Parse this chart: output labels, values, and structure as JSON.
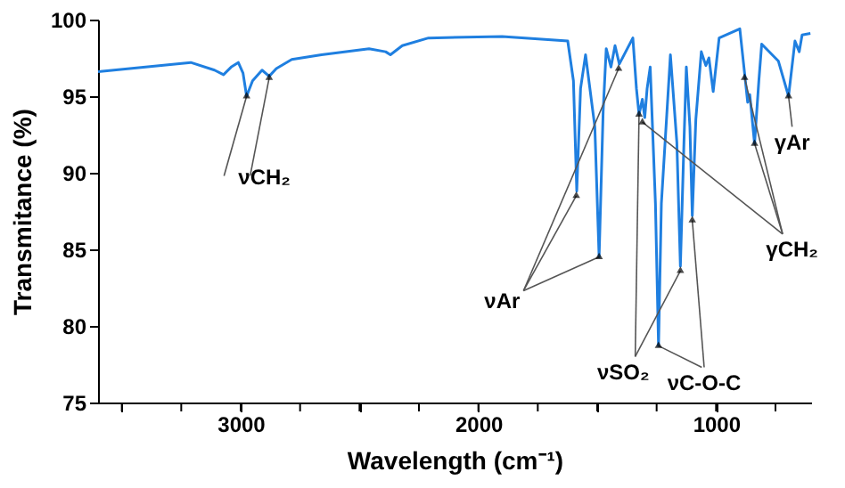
{
  "chart_data": {
    "type": "line",
    "xlabel": "Wavelength (cm⁻¹)",
    "ylabel": "Transmitance (%)",
    "x": [
      3600,
      3210,
      3110,
      3072,
      3040,
      3010,
      2990,
      2975,
      2950,
      2910,
      2880,
      2850,
      2785,
      2660,
      2460,
      2390,
      2370,
      2320,
      2210,
      1900,
      1624,
      1600,
      1586,
      1570,
      1549,
      1510,
      1492,
      1475,
      1462,
      1442,
      1425,
      1407,
      1350,
      1335,
      1324,
      1310,
      1300,
      1290,
      1277,
      1255,
      1242,
      1230,
      1192,
      1165,
      1150,
      1135,
      1125,
      1110,
      1100,
      1085,
      1062,
      1043,
      1030,
      1012,
      987,
      900,
      880,
      867,
      858,
      838,
      820,
      808,
      738,
      695,
      668,
      650,
      638,
      603
    ],
    "series": [
      {
        "color": "#1f7fe0",
        "values": [
          96.6,
          97.2,
          96.7,
          96.4,
          96.9,
          97.2,
          96.5,
          95.0,
          96.0,
          96.7,
          96.3,
          96.8,
          97.4,
          97.7,
          98.1,
          97.9,
          97.7,
          98.3,
          98.8,
          98.9,
          98.6,
          96.0,
          88.8,
          95.5,
          97.7,
          93.0,
          84.5,
          94.0,
          98.1,
          96.9,
          98.3,
          97.1,
          98.8,
          95.5,
          93.8,
          94.8,
          93.6,
          95.5,
          96.9,
          88.0,
          78.7,
          88.0,
          97.7,
          92.0,
          83.9,
          92.0,
          96.9,
          93.0,
          87.2,
          93.5,
          97.9,
          97.0,
          97.5,
          95.3,
          98.8,
          99.4,
          96.5,
          94.6,
          95.1,
          91.9,
          96.0,
          98.4,
          97.3,
          95.0,
          98.6,
          97.9,
          99.0,
          99.1
        ]
      }
    ],
    "xlim": [
      3600,
      600
    ],
    "ylim": [
      75,
      100
    ],
    "xticks": [
      {
        "value": 3500,
        "label": null
      },
      {
        "value": 3250,
        "label": null
      },
      3000,
      {
        "value": 2750,
        "label": null
      },
      {
        "value": 2500,
        "label": null
      },
      {
        "value": 2250,
        "label": null
      },
      2000,
      {
        "value": 1750,
        "label": null
      },
      {
        "value": 1500,
        "label": null
      },
      {
        "value": 1250,
        "label": null
      },
      1000,
      {
        "value": 750,
        "label": null
      }
    ],
    "yticks": [
      75,
      80,
      85,
      90,
      95,
      100
    ],
    "grid": false,
    "marker": "none",
    "line_style": "solid",
    "annotations": [
      {
        "text": "νCH₂",
        "x": 2975,
        "y": 95.0
      },
      {
        "text": "νAr",
        "x": 1492,
        "y": 84.5
      },
      {
        "text": "νSO₂",
        "x": 1324,
        "y": 93.8
      },
      {
        "text": "νC-O-C",
        "x": 1242,
        "y": 78.7
      },
      {
        "text": "γCH₂",
        "x": 838,
        "y": 91.9
      },
      {
        "text": "γAr",
        "x": 695,
        "y": 95.0
      }
    ]
  }
}
